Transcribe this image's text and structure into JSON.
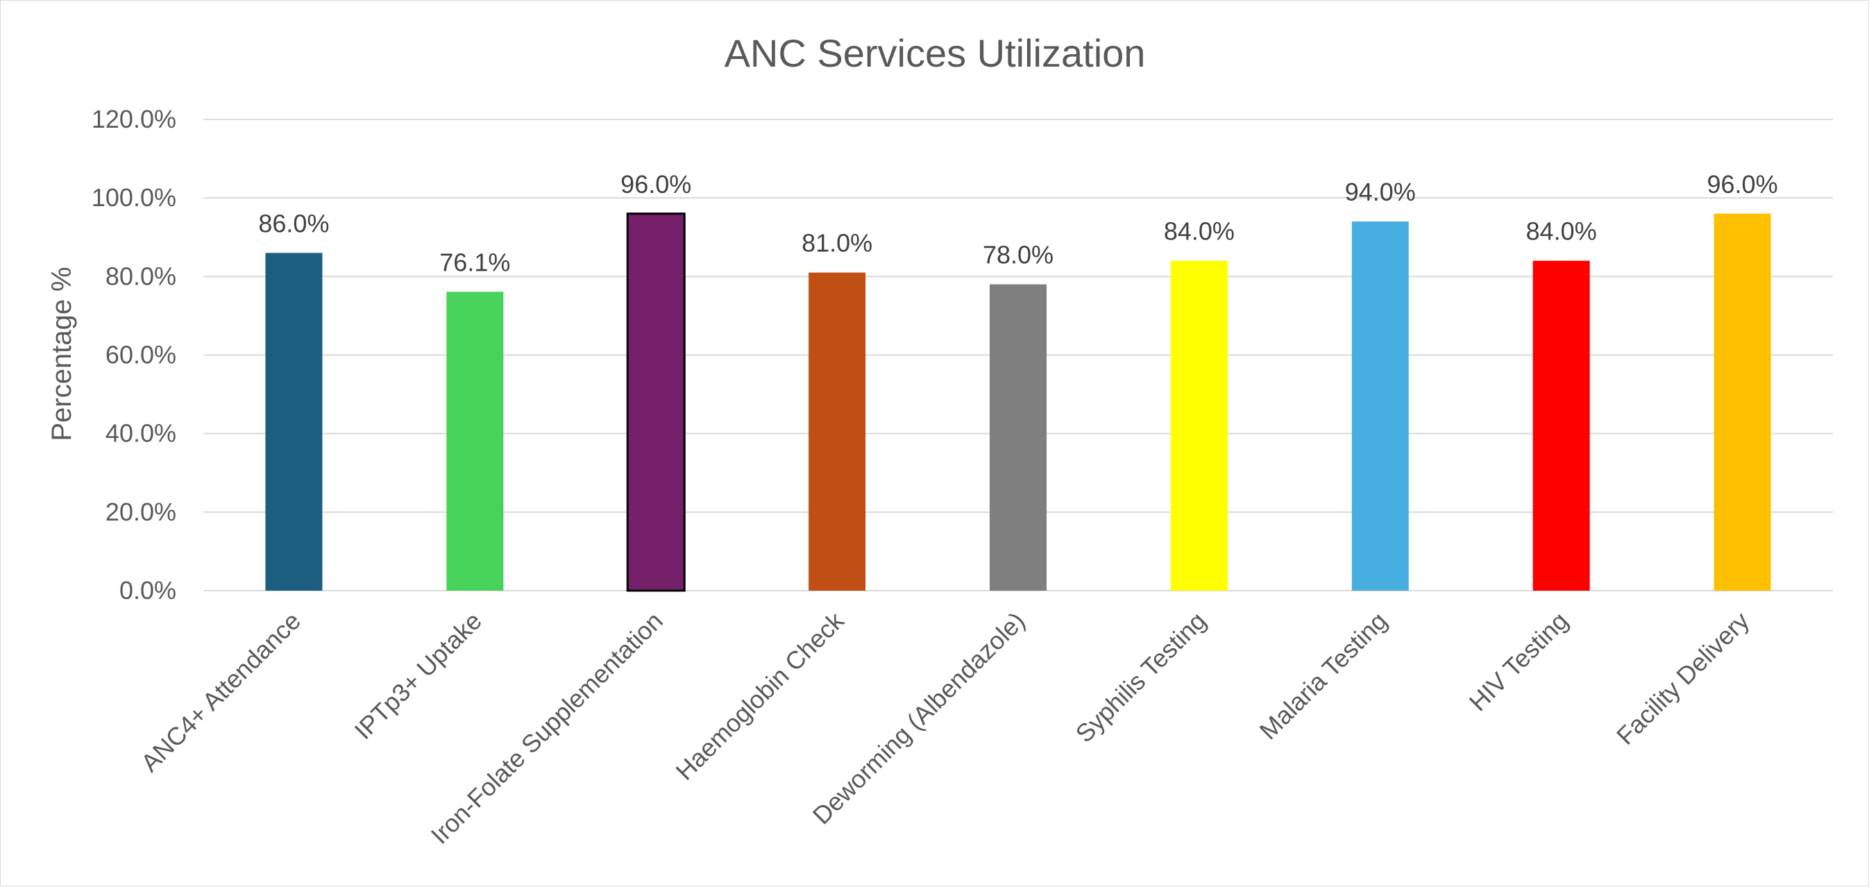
{
  "chart_data": {
    "type": "bar",
    "title": "ANC Services Utilization",
    "xlabel": "",
    "ylabel": "Percentage %",
    "ylim": [
      0,
      120
    ],
    "y_ticks": [
      "0.0%",
      "20.0%",
      "40.0%",
      "60.0%",
      "80.0%",
      "100.0%",
      "120.0%"
    ],
    "grid": true,
    "legend": "none",
    "categories": [
      "ANC4+ Attendance",
      "IPTp3+ Uptake",
      "Iron-Folate Supplementation",
      "Haemoglobin Check",
      "Deworming (Albendazole)",
      "Syphilis Testing",
      "Malaria Testing",
      "HIV Testing",
      "Facility Delivery"
    ],
    "values": [
      86.0,
      76.1,
      96.0,
      81.0,
      78.0,
      84.0,
      94.0,
      84.0,
      96.0
    ],
    "data_labels": [
      "86.0%",
      "76.1%",
      "96.0%",
      "81.0%",
      "78.0%",
      "84.0%",
      "94.0%",
      "84.0%",
      "96.0%"
    ],
    "colors": [
      "#1b5e7f",
      "#47d35a",
      "#761f6a",
      "#bf4f14",
      "#7f7f7f",
      "#ffff00",
      "#47afe0",
      "#ff0000",
      "#ffc000"
    ],
    "outlined": [
      false,
      false,
      true,
      false,
      false,
      false,
      false,
      false,
      false
    ]
  }
}
